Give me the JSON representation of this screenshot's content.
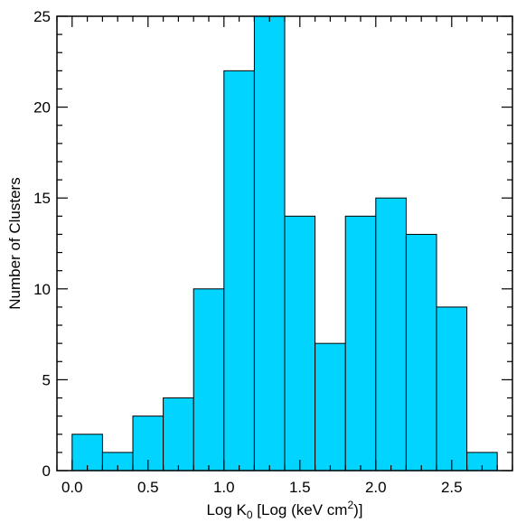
{
  "chart_data": {
    "type": "bar",
    "bin_edges": [
      0.0,
      0.2,
      0.4,
      0.6,
      0.8,
      1.0,
      1.2,
      1.4,
      1.6,
      1.8,
      2.0,
      2.2,
      2.4,
      2.6,
      2.8
    ],
    "values": [
      2,
      1,
      3,
      4,
      10,
      22,
      25,
      14,
      7,
      14,
      15,
      13,
      9,
      1
    ],
    "xlabel": {
      "main": "Log K",
      "sub": "0",
      "mid": " [Log (keV cm",
      "sup": "2",
      "end": ")]"
    },
    "ylabel": "Number of Clusters",
    "xlim": [
      -0.1,
      2.9
    ],
    "ylim": [
      0,
      25
    ],
    "x_ticks": [
      {
        "value": 0.0,
        "label": "0.0"
      },
      {
        "value": 0.5,
        "label": "0.5"
      },
      {
        "value": 1.0,
        "label": "1.0"
      },
      {
        "value": 1.5,
        "label": "1.5"
      },
      {
        "value": 2.0,
        "label": "2.0"
      },
      {
        "value": 2.5,
        "label": "2.5"
      }
    ],
    "y_ticks": [
      {
        "value": 0,
        "label": "0"
      },
      {
        "value": 5,
        "label": "5"
      },
      {
        "value": 10,
        "label": "10"
      },
      {
        "value": 15,
        "label": "15"
      },
      {
        "value": 20,
        "label": "20"
      },
      {
        "value": 25,
        "label": "25"
      }
    ],
    "grid": false,
    "bar_color": "#00d4ff",
    "edge_color": "#000000"
  }
}
